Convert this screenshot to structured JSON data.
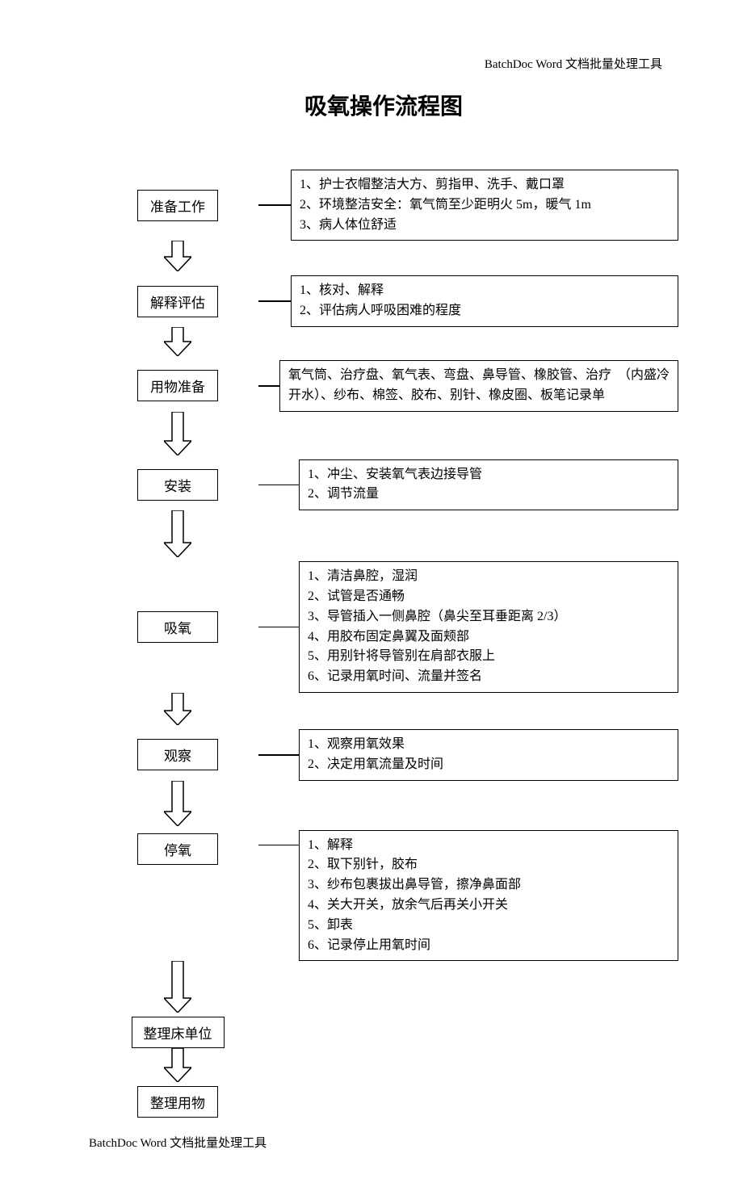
{
  "header": "BatchDoc Word 文档批量处理工具",
  "footer": "BatchDoc Word 文档批量处理工具",
  "title": "吸氧操作流程图",
  "flowchart": {
    "type": "flowchart",
    "colors": {
      "background": "#ffffff",
      "border": "#000000",
      "text": "#000000",
      "arrow_stroke": "#000000",
      "arrow_fill": "#ffffff"
    },
    "fonts": {
      "title_size": 28,
      "step_size": 17,
      "desc_size": 16,
      "header_size": 15
    },
    "box_border_width": 1.5,
    "steps": [
      {
        "id": "prep",
        "label": "准备工作",
        "desc": "1、护士衣帽整洁大方、剪指甲、洗手、戴口罩\n2、环境整洁安全：氧气筒至少距明火 5m，暖气 1m\n3、病人体位舒适",
        "arrow_shaft_h": 20,
        "conn_w": 40
      },
      {
        "id": "explain",
        "label": "解释评估",
        "desc": "1、核对、解释\n2、评估病人呼吸困难的程度",
        "arrow_shaft_h": 18,
        "conn_w": 40
      },
      {
        "id": "materials",
        "label": "用物准备",
        "desc": "氧气筒、治疗盘、氧气表、弯盘、鼻导管、橡胶管、治疗　（内盛冷开水）、纱布、棉签、胶布、别针、橡皮圈、板笔记录单",
        "arrow_shaft_h": 36,
        "conn_w": 26
      },
      {
        "id": "install",
        "label": "安装",
        "desc": "1、冲尘、安装氧气表边接导管\n2、调节流量",
        "arrow_shaft_h": 40,
        "conn_w": 50
      },
      {
        "id": "oxygen",
        "label": "吸氧",
        "desc": "1、清洁鼻腔，湿润\n2、试管是否通畅\n3、导管插入一侧鼻腔（鼻尖至耳垂距离 2/3）\n4、用胶布固定鼻翼及面颊部\n5、用别针将导管别在肩部衣服上\n6、记录用氧时间、流量并签名",
        "arrow_shaft_h": 22,
        "conn_w": 50
      },
      {
        "id": "observe",
        "label": "观察",
        "desc": "1、观察用氧效果\n2、决定用氧流量及时间",
        "arrow_shaft_h": 38,
        "conn_w": 50
      },
      {
        "id": "stop",
        "label": "停氧",
        "desc": "1、解释\n2、取下别针，胶布\n3、纱布包裹拔出鼻导管，擦净鼻面部\n4、关大开关，放余气后再关小开关\n5、卸表\n6、记录停止用氧时间",
        "arrow_shaft_h": 46,
        "conn_w": 50
      },
      {
        "id": "bed",
        "label": "整理床单位",
        "desc": null,
        "arrow_shaft_h": 24,
        "conn_w": 0
      },
      {
        "id": "tidy",
        "label": "整理用物",
        "desc": null,
        "arrow_shaft_h": 0,
        "conn_w": 0
      }
    ]
  }
}
